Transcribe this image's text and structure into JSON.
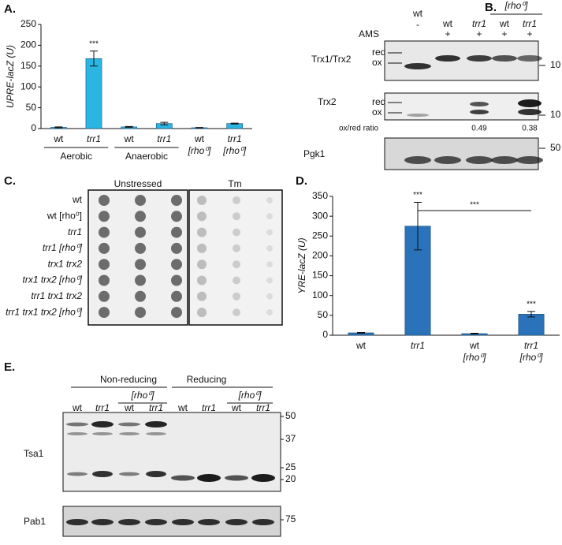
{
  "chart_data": [
    {
      "type": "bar",
      "panel_label": "A.",
      "ylabel": "UPRE-lacZ (U)",
      "categories": [
        "wt",
        "trr1",
        "wt",
        "trr1",
        "wt",
        "trr1"
      ],
      "category_notes": [
        null,
        null,
        null,
        null,
        "[rho⁰]",
        "[rho⁰]"
      ],
      "groups": [
        "Aerobic",
        "Anaerobic"
      ],
      "values": [
        3,
        168,
        4,
        12,
        2,
        12
      ],
      "errors": [
        1,
        18,
        1,
        3,
        0.5,
        1
      ],
      "annotations": [
        null,
        "***",
        null,
        null,
        null,
        null
      ],
      "color": "#2bb5e3",
      "ylim": [
        0,
        250
      ],
      "yticks": [
        0,
        50,
        100,
        150,
        200,
        250
      ]
    },
    {
      "type": "bar",
      "panel_label": "D.",
      "ylabel": "YRE-lacZ (U)",
      "categories": [
        "wt",
        "trr1",
        "wt",
        "trr1"
      ],
      "category_notes": [
        null,
        null,
        "[rho⁰]",
        "[rho⁰]"
      ],
      "values": [
        6,
        275,
        4,
        53
      ],
      "errors": [
        1,
        60,
        1,
        7
      ],
      "annotations": [
        null,
        "***",
        null,
        "***"
      ],
      "comparison": "***",
      "color": "#2a73ba",
      "ylim": [
        0,
        350
      ],
      "yticks": [
        0,
        50,
        100,
        150,
        200,
        250,
        300,
        350
      ]
    }
  ],
  "panel_b": {
    "label": "B.",
    "rho_label": "[rho⁰]",
    "lanes": [
      "wt",
      "wt",
      "trr1",
      "wt",
      "trr1"
    ],
    "ams_label": "AMS",
    "ams": [
      "-",
      "+",
      "+",
      "+",
      "+"
    ],
    "blots": [
      {
        "name": "Trx1/Trx2",
        "forms": [
          "red",
          "ox"
        ],
        "marker": 10
      },
      {
        "name": "Trx2",
        "forms": [
          "red",
          "ox"
        ],
        "marker": 10
      },
      {
        "name": "Pgk1",
        "marker": 50
      }
    ],
    "ratio_label": "ox/red ratio",
    "ratios": [
      0.49,
      0.38
    ]
  },
  "panel_c": {
    "label": "C.",
    "conditions": [
      "Unstressed",
      "Tm"
    ],
    "strains": [
      "wt",
      "wt [rho⁰]",
      "trr1",
      "trr1 [rho⁰]",
      "trx1 trx2",
      "trx1 trx2 [rho⁰]",
      "trr1 trx1 trx2",
      "trr1 trx1 trx2 [rho⁰]"
    ]
  },
  "panel_e": {
    "label": "E.",
    "conditions": [
      "Non-reducing",
      "Reducing"
    ],
    "rho_label": "[rho⁰]",
    "lanes": [
      "wt",
      "trr1",
      "wt",
      "trr1",
      "wt",
      "trr1",
      "wt",
      "trr1"
    ],
    "blots": [
      {
        "name": "Tsa1",
        "markers": [
          50,
          37,
          25,
          20
        ]
      },
      {
        "name": "Pab1",
        "markers": [
          75
        ]
      }
    ]
  }
}
